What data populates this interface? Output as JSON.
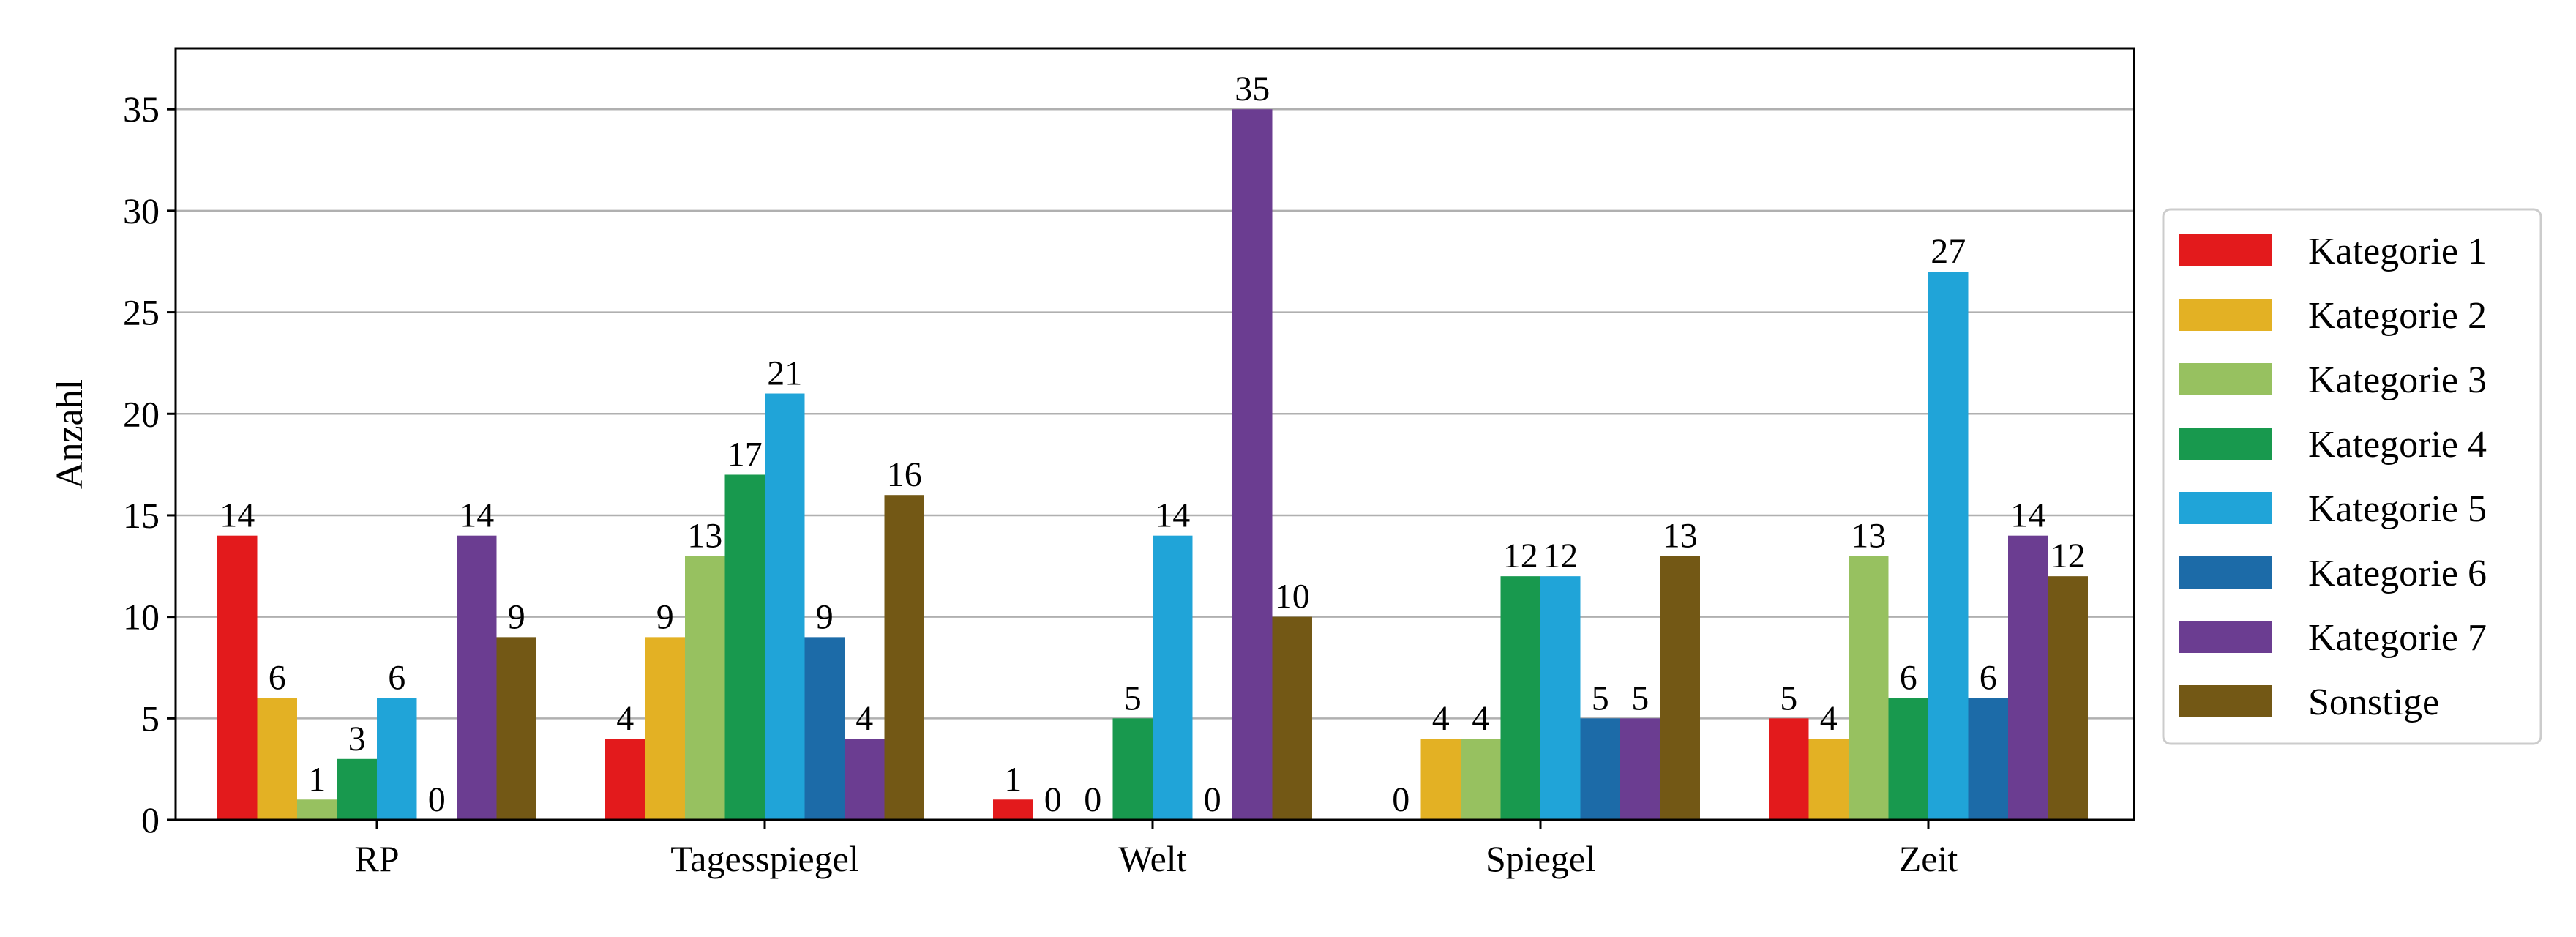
{
  "chart_data": {
    "type": "bar",
    "title": "",
    "xlabel": "",
    "ylabel": "Anzahl",
    "ylim": [
      0,
      38
    ],
    "yticks": [
      0,
      5,
      10,
      15,
      20,
      25,
      30,
      35
    ],
    "grid": "horizontal",
    "legend_position": "right",
    "categories": [
      "RP",
      "Tagesspiegel",
      "Welt",
      "Spiegel",
      "Zeit"
    ],
    "series": [
      {
        "name": "Kategorie 1",
        "color": "#e31a1c",
        "values": [
          14,
          4,
          1,
          0,
          5
        ]
      },
      {
        "name": "Kategorie 2",
        "color": "#e3b124",
        "values": [
          6,
          9,
          0,
          4,
          4
        ]
      },
      {
        "name": "Kategorie 3",
        "color": "#97c160",
        "values": [
          1,
          13,
          0,
          4,
          13
        ]
      },
      {
        "name": "Kategorie 4",
        "color": "#18994e",
        "values": [
          3,
          17,
          5,
          12,
          6
        ]
      },
      {
        "name": "Kategorie 5",
        "color": "#20a4d8",
        "values": [
          6,
          21,
          14,
          12,
          27
        ]
      },
      {
        "name": "Kategorie 6",
        "color": "#1c6ba8",
        "values": [
          0,
          9,
          0,
          5,
          6
        ]
      },
      {
        "name": "Kategorie 7",
        "color": "#6b3d91",
        "values": [
          14,
          4,
          35,
          5,
          14
        ]
      },
      {
        "name": "Sonstige",
        "color": "#735815",
        "values": [
          9,
          16,
          10,
          13,
          12
        ]
      }
    ]
  }
}
